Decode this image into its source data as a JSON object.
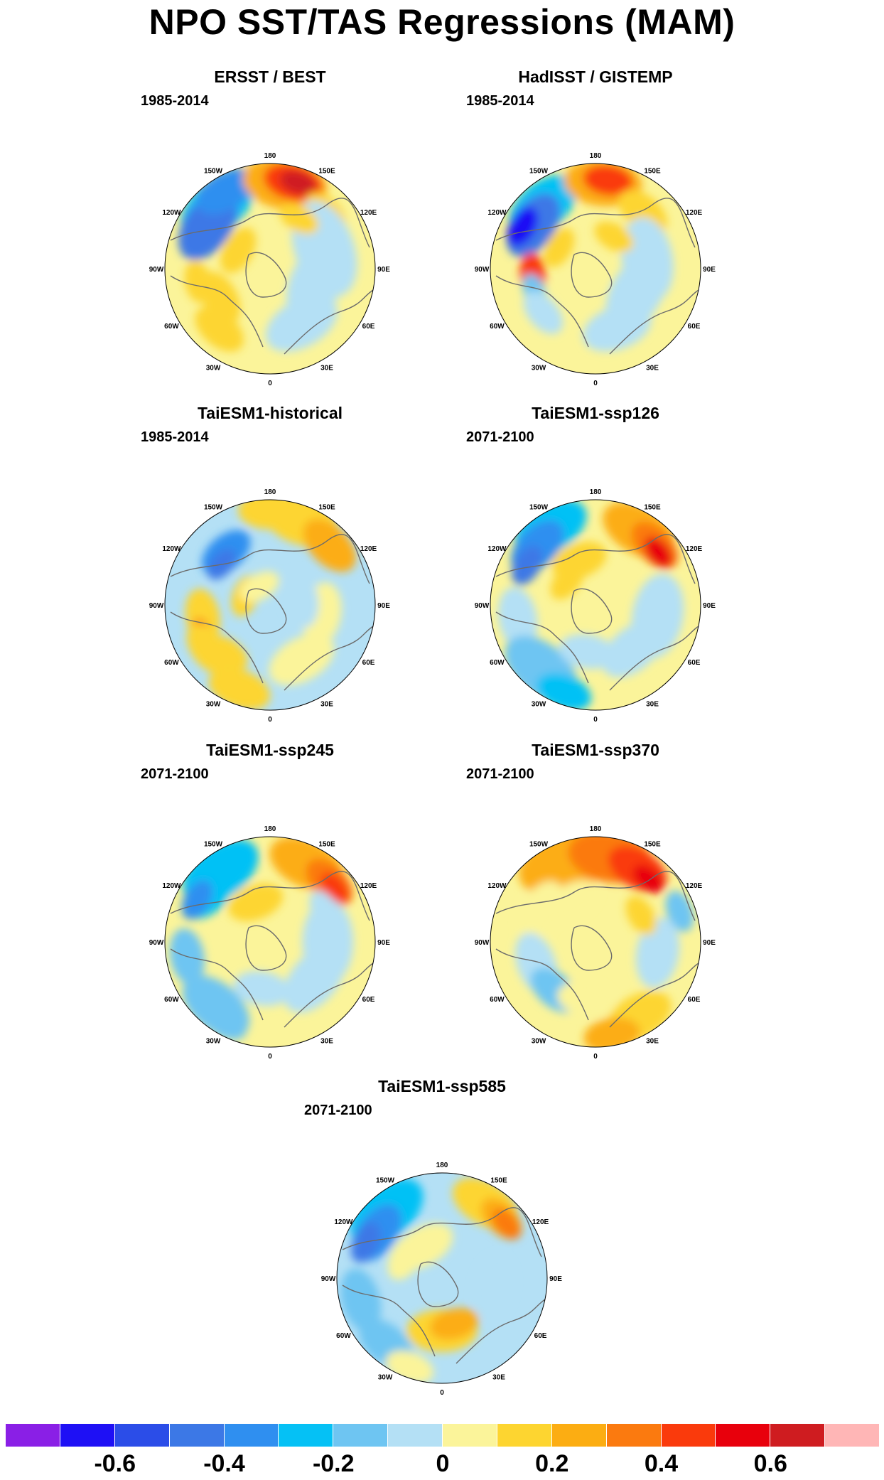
{
  "title": "NPO SST/TAS Regressions (MAM)",
  "lon_labels": [
    "180",
    "150E",
    "120E",
    "90E",
    "60E",
    "30E",
    "0",
    "30W",
    "60W",
    "90W",
    "120W",
    "150W"
  ],
  "panels": [
    {
      "id": "p1",
      "title": "ERSST / BEST",
      "period": "1985-2014",
      "pattern": "obs1"
    },
    {
      "id": "p2",
      "title": "HadISST / GISTEMP",
      "period": "1985-2014",
      "pattern": "obs2"
    },
    {
      "id": "p3",
      "title": "TaiESM1-historical",
      "period": "1985-2014",
      "pattern": "hist"
    },
    {
      "id": "p4",
      "title": "TaiESM1-ssp126",
      "period": "2071-2100",
      "pattern": "ssp126"
    },
    {
      "id": "p5",
      "title": "TaiESM1-ssp245",
      "period": "2071-2100",
      "pattern": "ssp245"
    },
    {
      "id": "p6",
      "title": "TaiESM1-ssp370",
      "period": "2071-2100",
      "pattern": "ssp370"
    },
    {
      "id": "p7",
      "title": "TaiESM1-ssp585",
      "period": "2071-2100",
      "pattern": "ssp585"
    }
  ],
  "colorbar": {
    "colors": [
      "#8a1fe6",
      "#1e10f5",
      "#2b4de8",
      "#3c78e6",
      "#2f8ff0",
      "#05c1f5",
      "#6ec5f2",
      "#b4e0f5",
      "#fbf49a",
      "#fdd530",
      "#fcad12",
      "#fb7a0f",
      "#fa3a0c",
      "#e8000c",
      "#cf1c20",
      "#ffb6b6"
    ],
    "tick_labels": [
      "-0.6",
      "-0.4",
      "-0.2",
      "0",
      "0.2",
      "0.4",
      "0.6"
    ],
    "tick_values": [
      -0.6,
      -0.4,
      -0.2,
      0,
      0.2,
      0.4,
      0.6
    ]
  }
}
